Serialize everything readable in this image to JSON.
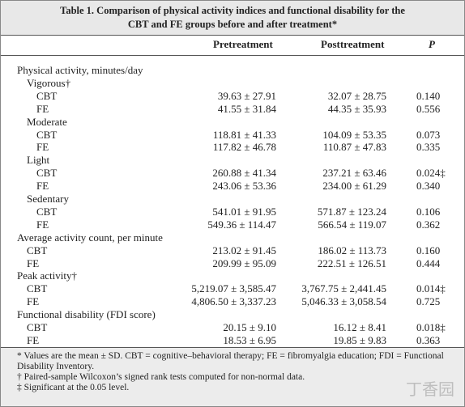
{
  "title": [
    "Table 1. Comparison of physical activity indices and functional disability for the",
    "CBT and FE groups before and after treatment*"
  ],
  "columns": [
    "Pretreatment",
    "Posttreatment",
    "P"
  ],
  "sections": [
    {
      "label": "Physical activity, minutes/day",
      "groups": [
        {
          "label": "Vigorous†",
          "rows": [
            {
              "label": "CBT",
              "cells": [
                "39.63 ± 27.91",
                "32.07 ± 28.75",
                "0.140"
              ]
            },
            {
              "label": "FE",
              "cells": [
                "41.55 ± 31.84",
                "44.35 ± 35.93",
                "0.556"
              ]
            }
          ]
        },
        {
          "label": "Moderate",
          "rows": [
            {
              "label": "CBT",
              "cells": [
                "118.81 ± 41.33",
                "104.09 ± 53.35",
                "0.073"
              ]
            },
            {
              "label": "FE",
              "cells": [
                "117.82 ± 46.78",
                "110.87 ± 47.83",
                "0.335"
              ]
            }
          ]
        },
        {
          "label": "Light",
          "rows": [
            {
              "label": "CBT",
              "cells": [
                "260.88 ± 41.34",
                "237.21 ± 63.46",
                "0.024‡"
              ]
            },
            {
              "label": "FE",
              "cells": [
                "243.06 ± 53.36",
                "234.00 ± 61.29",
                "0.340"
              ]
            }
          ]
        },
        {
          "label": "Sedentary",
          "rows": [
            {
              "label": "CBT",
              "cells": [
                "541.01 ± 91.95",
                "571.87 ± 123.24",
                "0.106"
              ]
            },
            {
              "label": "FE",
              "cells": [
                "549.36 ± 114.47",
                "566.54 ± 119.07",
                "0.362"
              ]
            }
          ]
        }
      ]
    },
    {
      "label": "Average activity count, per minute",
      "rows": [
        {
          "label": "CBT",
          "cells": [
            "213.02 ± 91.45",
            "186.02 ± 113.73",
            "0.160"
          ]
        },
        {
          "label": "FE",
          "cells": [
            "209.99 ± 95.09",
            "222.51 ± 126.51",
            "0.444"
          ]
        }
      ]
    },
    {
      "label": "Peak activity†",
      "rows": [
        {
          "label": "CBT",
          "cells": [
            "5,219.07 ± 3,585.47",
            "3,767.75 ± 2,441.45",
            "0.014‡"
          ]
        },
        {
          "label": "FE",
          "cells": [
            "4,806.50 ± 3,337.23",
            "5,046.33 ± 3,058.54",
            "0.725"
          ]
        }
      ]
    },
    {
      "label": "Functional disability (FDI score)",
      "rows": [
        {
          "label": "CBT",
          "cells": [
            "20.15 ± 9.10",
            "16.12 ± 8.41",
            "0.018‡"
          ]
        },
        {
          "label": "FE",
          "cells": [
            "18.53 ± 6.95",
            "19.85 ± 9.83",
            "0.363"
          ]
        }
      ]
    }
  ],
  "footnotes": [
    "* Values are the mean ± SD. CBT = cognitive–behavioral therapy; FE = fibromyalgia education; FDI = Functional Disability Inventory.",
    "† Paired-sample Wilcoxon’s signed rank tests computed for non-normal data.",
    "‡ Significant at the 0.05 level."
  ],
  "watermark": "丁香园"
}
